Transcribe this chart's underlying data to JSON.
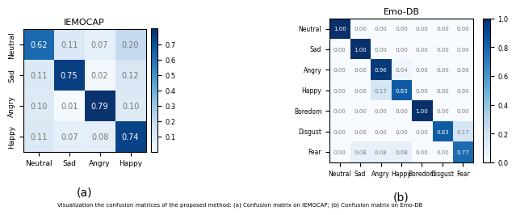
{
  "iemocap": {
    "title": "IEMOCAP",
    "labels": [
      "Neutral",
      "Sad",
      "Angry",
      "Happy"
    ],
    "matrix": [
      [
        0.62,
        0.11,
        0.07,
        0.2
      ],
      [
        0.11,
        0.75,
        0.02,
        0.12
      ],
      [
        0.1,
        0.01,
        0.79,
        0.1
      ],
      [
        0.11,
        0.07,
        0.08,
        0.74
      ]
    ],
    "vmin": 0.0,
    "vmax": 0.8,
    "colorbar_ticks": [
      0.1,
      0.2,
      0.3,
      0.4,
      0.5,
      0.6,
      0.7
    ],
    "subtitle": "(a)"
  },
  "emodb": {
    "title": "Emo-DB",
    "labels": [
      "Neutral",
      "Sad",
      "Angry",
      "Happy",
      "Boredom",
      "Disgust",
      "Fear"
    ],
    "matrix": [
      [
        1.0,
        0.0,
        0.0,
        0.0,
        0.0,
        0.0,
        0.0
      ],
      [
        0.0,
        1.0,
        0.0,
        0.0,
        0.0,
        0.0,
        0.0
      ],
      [
        0.0,
        0.0,
        0.96,
        0.04,
        0.0,
        0.0,
        0.0
      ],
      [
        0.0,
        0.0,
        0.17,
        0.83,
        0.0,
        0.0,
        0.0
      ],
      [
        0.0,
        0.0,
        0.0,
        0.0,
        1.0,
        0.0,
        0.0
      ],
      [
        0.0,
        0.0,
        0.0,
        0.0,
        0.0,
        0.83,
        0.17
      ],
      [
        0.0,
        0.08,
        0.08,
        0.08,
        0.0,
        0.0,
        0.77
      ]
    ],
    "vmin": 0.0,
    "vmax": 1.0,
    "colorbar_ticks": [
      0.0,
      0.2,
      0.4,
      0.6,
      0.8,
      1.0
    ],
    "subtitle": "(b)"
  },
  "caption": "Visualization the confusion matrices of the proposed method: (a) Confusion matrix on IEMOCAP; (b) Confusion matrix on Emo-DB",
  "cmap": "Blues",
  "text_color_threshold_iemocap": 0.4,
  "text_color_threshold_emodb": 0.5
}
